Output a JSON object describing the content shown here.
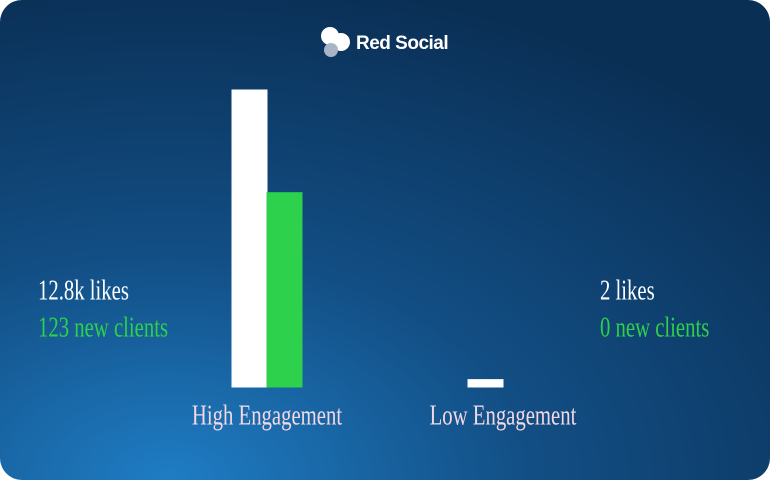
{
  "brand": "Red Social",
  "chart_data": {
    "type": "bar",
    "categories": [
      "High Engagement",
      "Low Engagement"
    ],
    "series": [
      {
        "color": "#ffffff",
        "values": [
          12800,
          2
        ],
        "value_labels": [
          "12.8k likes",
          "2 likes"
        ]
      },
      {
        "color": "#2dd14b",
        "values": [
          123,
          0
        ],
        "value_labels": [
          "123 new clients",
          "0 new clients"
        ],
        "axis": "y2"
      }
    ],
    "ylim": [
      1.6,
      12800
    ],
    "log_scale": true,
    "y2lim": [
      0,
      188
    ]
  }
}
